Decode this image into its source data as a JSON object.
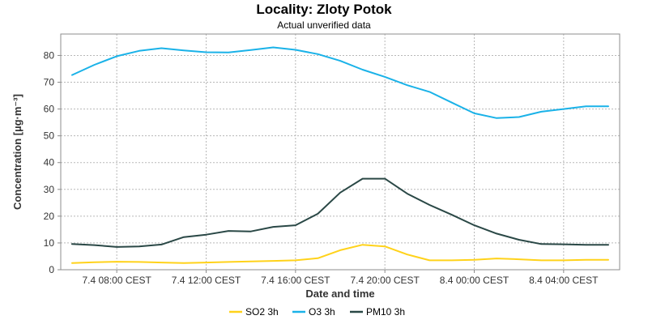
{
  "chart_data": {
    "type": "line",
    "title": "Locality: Zloty Potok",
    "subtitle": "Actual unverified data",
    "xlabel": "Date and time",
    "ylabel": "Concentration [µg·m⁻³]",
    "ylim": [
      0,
      88
    ],
    "yticks": [
      0,
      10,
      20,
      30,
      40,
      50,
      60,
      70,
      80
    ],
    "grid": true,
    "legend_position": "bottom",
    "x": [
      "7.4 06:00",
      "7.4 07:00",
      "7.4 08:00",
      "7.4 09:00",
      "7.4 10:00",
      "7.4 11:00",
      "7.4 12:00",
      "7.4 13:00",
      "7.4 14:00",
      "7.4 15:00",
      "7.4 16:00",
      "7.4 17:00",
      "7.4 18:00",
      "7.4 19:00",
      "7.4 20:00",
      "7.4 21:00",
      "7.4 22:00",
      "7.4 23:00",
      "8.4 00:00",
      "8.4 01:00",
      "8.4 02:00",
      "8.4 03:00",
      "8.4 04:00",
      "8.4 05:00",
      "8.4 06:00"
    ],
    "x_ticks": [
      {
        "at": "7.4 08:00",
        "label": "7.4 08:00 CEST"
      },
      {
        "at": "7.4 12:00",
        "label": "7.4 12:00 CEST"
      },
      {
        "at": "7.4 16:00",
        "label": "7.4 16:00 CEST"
      },
      {
        "at": "7.4 20:00",
        "label": "7.4 20:00 CEST"
      },
      {
        "at": "8.4 00:00",
        "label": "8.4 00:00 CEST"
      },
      {
        "at": "8.4 04:00",
        "label": "8.4 04:00 CEST"
      }
    ],
    "series": [
      {
        "name": "SO2 3h",
        "color": "#ffd21a",
        "values": [
          2.5,
          2.8,
          3.0,
          2.9,
          2.7,
          2.5,
          2.7,
          2.9,
          3.1,
          3.3,
          3.5,
          4.3,
          7.3,
          9.3,
          8.7,
          5.7,
          3.5,
          3.5,
          3.7,
          4.2,
          3.9,
          3.5,
          3.5,
          3.7,
          3.7
        ]
      },
      {
        "name": "O3 3h",
        "color": "#1ab2e8",
        "values": [
          72.7,
          76.5,
          79.7,
          81.7,
          82.7,
          81.9,
          81.2,
          81.1,
          82.0,
          83.0,
          82.1,
          80.5,
          78.0,
          74.7,
          72.0,
          68.9,
          66.4,
          62.4,
          58.4,
          56.6,
          57.0,
          59.0,
          60.0,
          61.0,
          61.0
        ]
      },
      {
        "name": "PM10 3h",
        "color": "#2a4846",
        "values": [
          9.6,
          9.2,
          8.5,
          8.7,
          9.4,
          12.2,
          13.1,
          14.5,
          14.3,
          16.0,
          16.6,
          20.9,
          28.8,
          34.0,
          34.0,
          28.4,
          24.2,
          20.5,
          16.6,
          13.5,
          11.2,
          9.6,
          9.5,
          9.3,
          9.3
        ]
      }
    ]
  }
}
